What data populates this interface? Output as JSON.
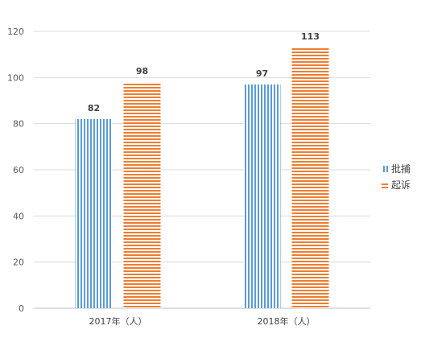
{
  "chart_data": {
    "type": "bar",
    "categories": [
      "2017年（人）",
      "2018年（人）"
    ],
    "series": [
      {
        "name": "批捕",
        "values": [
          82,
          97
        ],
        "color": "#5b9bd5",
        "pattern": "vertical-stripes"
      },
      {
        "name": "起诉",
        "values": [
          98,
          113
        ],
        "color": "#ed7d31",
        "pattern": "horizontal-stripes"
      }
    ],
    "ylim": [
      0,
      120
    ],
    "yticks": [
      0,
      20,
      40,
      60,
      80,
      100,
      120
    ],
    "grid": true,
    "legend_position": "right",
    "data_labels": true
  }
}
